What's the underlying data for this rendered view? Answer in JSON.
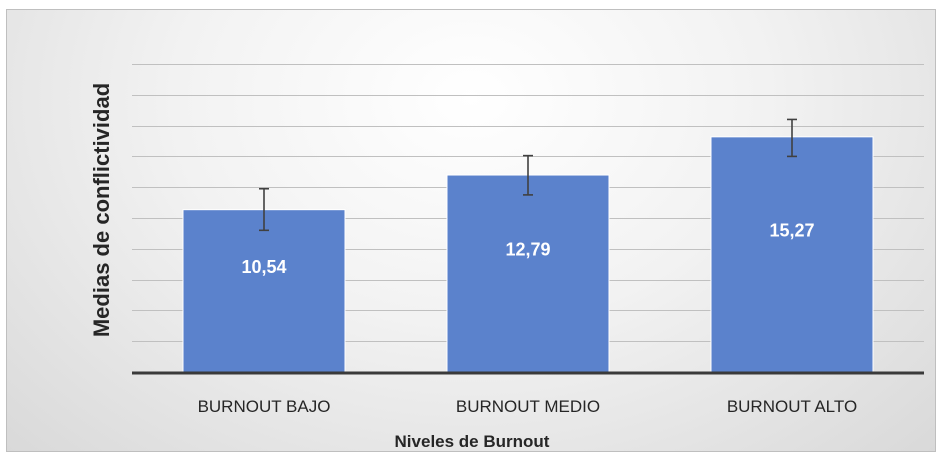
{
  "chart_data": {
    "type": "bar",
    "title": "",
    "xlabel": "Niveles de Burnout",
    "ylabel": "Medias de conflictividad",
    "categories": [
      "BURNOUT BAJO",
      "BURNOUT MEDIO",
      "BURNOUT ALTO"
    ],
    "values": [
      10.54,
      12.79,
      15.27
    ],
    "value_labels": [
      "10,54",
      "12,79",
      "15,27"
    ],
    "error_low": [
      9.2,
      11.5,
      14.0
    ],
    "error_high": [
      11.9,
      14.05,
      16.4
    ],
    "ylim": [
      0,
      20
    ],
    "y_ticks_visible": false,
    "grid": true,
    "legend": "none",
    "colors": {
      "bar": "#5b82cc",
      "bar_edge": "#ffffff",
      "grid": "#c0c0c0",
      "axis": "#3a3a3a",
      "error_bar": "#404040"
    }
  }
}
